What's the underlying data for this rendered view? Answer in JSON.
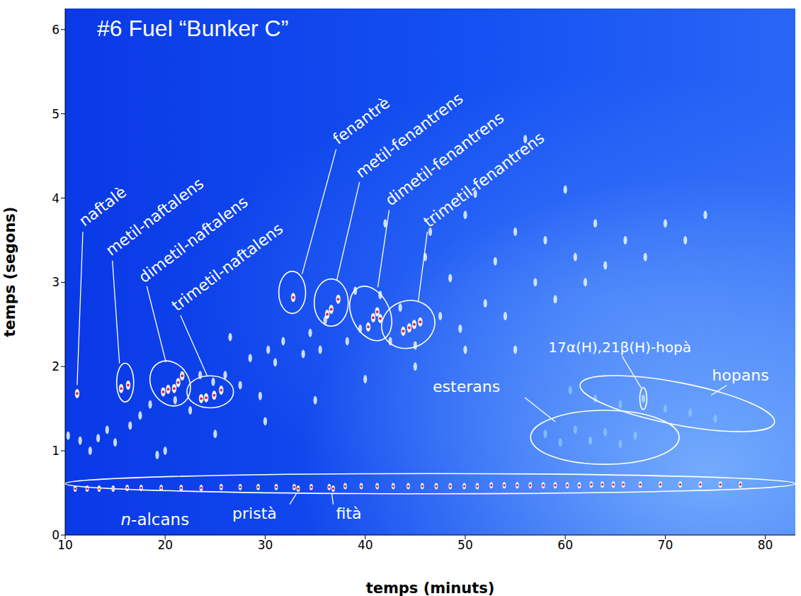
{
  "chart_data": {
    "type": "scatter",
    "title": "#6 Fuel “Bunker C”",
    "x_label": "temps (minuts)",
    "y_label": "temps (segons)",
    "xlim": [
      10,
      83
    ],
    "xticks": [
      10,
      20,
      30,
      40,
      50,
      60,
      70,
      80
    ],
    "ylim": [
      0,
      6.25
    ],
    "yticks": [
      0,
      1,
      2,
      3,
      4,
      5,
      6
    ],
    "grid": false,
    "series": [
      {
        "name": "n-alcans",
        "color": "#d0203c",
        "x": [
          11.0,
          12.2,
          13.4,
          14.8,
          16.2,
          17.6,
          19.6,
          21.6,
          23.6,
          25.6,
          27.5,
          29.3,
          31.1,
          32.9,
          34.6,
          36.4,
          38.0,
          39.6,
          41.2,
          42.8,
          44.3,
          45.7,
          47.1,
          48.5,
          49.9,
          51.2,
          52.6,
          53.9,
          55.2,
          56.5,
          57.8,
          59.0,
          60.2,
          61.4,
          62.6,
          63.7,
          64.8,
          65.8,
          67.5,
          69.5,
          71.5,
          73.5,
          75.5,
          77.5
        ],
        "y": [
          0.55,
          0.55,
          0.55,
          0.55,
          0.56,
          0.56,
          0.56,
          0.56,
          0.56,
          0.57,
          0.57,
          0.57,
          0.57,
          0.57,
          0.57,
          0.57,
          0.58,
          0.58,
          0.58,
          0.58,
          0.58,
          0.58,
          0.58,
          0.58,
          0.58,
          0.58,
          0.59,
          0.59,
          0.59,
          0.59,
          0.59,
          0.59,
          0.59,
          0.59,
          0.6,
          0.6,
          0.6,
          0.6,
          0.6,
          0.6,
          0.6,
          0.6,
          0.6,
          0.6
        ],
        "ellipse": {
          "x": 46.5,
          "y": 0.61,
          "rx": 36.5,
          "ry": 0.12
        }
      },
      {
        "name": "pristà",
        "color": "#d0203c",
        "x": [
          33.3
        ],
        "y": [
          0.55
        ]
      },
      {
        "name": "fità",
        "color": "#d0203c",
        "x": [
          36.8
        ],
        "y": [
          0.55
        ]
      },
      {
        "name": "naftalè",
        "color": "#e0283c",
        "x": [
          11.2
        ],
        "y": [
          1.68
        ]
      },
      {
        "name": "metil-naftalens",
        "color": "#e0283c",
        "x": [
          15.6,
          16.3
        ],
        "y": [
          1.74,
          1.78
        ],
        "ellipse": {
          "x": 16.0,
          "y": 1.81,
          "rx": 0.85,
          "ry": 0.23
        }
      },
      {
        "name": "dimetil-naftalens",
        "color": "#e0283c",
        "x": [
          19.8,
          20.3,
          20.9,
          21.3,
          21.7
        ],
        "y": [
          1.7,
          1.73,
          1.74,
          1.81,
          1.89
        ],
        "ellipse": {
          "x": 20.5,
          "y": 1.8,
          "rx": 1.9,
          "ry": 0.28
        }
      },
      {
        "name": "trimetil-naftalens",
        "color": "#e0283c",
        "x": [
          23.6,
          24.1,
          24.9,
          25.6
        ],
        "y": [
          1.62,
          1.63,
          1.66,
          1.72
        ],
        "ellipse": {
          "x": 24.5,
          "y": 1.7,
          "rx": 2.33,
          "ry": 0.19
        }
      },
      {
        "name": "fenantrè",
        "color": "#e0283c",
        "x": [
          32.8
        ],
        "y": [
          2.82
        ],
        "ellipse": {
          "x": 32.7,
          "y": 2.88,
          "rx": 1.34,
          "ry": 0.25
        }
      },
      {
        "name": "metil-fenantrens",
        "color": "#e0283c",
        "x": [
          36.2,
          36.6,
          37.3
        ],
        "y": [
          2.62,
          2.68,
          2.8
        ],
        "ellipse": {
          "x": 36.6,
          "y": 2.76,
          "rx": 1.7,
          "ry": 0.28
        }
      },
      {
        "name": "dimetil-fenantrens",
        "color": "#e0283c",
        "x": [
          40.3,
          40.8,
          41.2,
          41.5
        ],
        "y": [
          2.47,
          2.58,
          2.65,
          2.57
        ],
        "ellipse": {
          "x": 40.55,
          "y": 2.63,
          "rx": 1.9,
          "ry": 0.34
        }
      },
      {
        "name": "trimetil-fenantrens",
        "color": "#e0283c",
        "x": [
          43.8,
          44.4,
          44.9,
          45.5
        ],
        "y": [
          2.42,
          2.46,
          2.5,
          2.53
        ],
        "ellipse": {
          "x": 44.3,
          "y": 2.5,
          "rx": 2.7,
          "ry": 0.28
        }
      },
      {
        "name": "esterans",
        "color": "#8cc0ff",
        "x": [
          58,
          59.5,
          61,
          62.5,
          64,
          65.5,
          67
        ],
        "y": [
          1.2,
          1.1,
          1.25,
          1.12,
          1.22,
          1.08,
          1.18
        ],
        "ellipse": {
          "x": 63.96,
          "y": 1.16,
          "rx": 7.43,
          "ry": 0.32
        }
      },
      {
        "name": "hopans",
        "color": "#8cc0ff",
        "x": [
          60.5,
          63,
          65.5,
          70,
          72.5,
          75
        ],
        "y": [
          1.72,
          1.62,
          1.55,
          1.5,
          1.45,
          1.38
        ],
        "ellipse": {
          "x": 71.2,
          "y": 1.56,
          "rx": 9.9,
          "ry": 0.25
        }
      },
      {
        "name": "17α(H),21β(H)-hopà",
        "color": "#b8d8ff",
        "x": [
          67.8
        ],
        "y": [
          1.62
        ],
        "ellipse": {
          "x": 67.8,
          "y": 1.62,
          "rx": 0.35,
          "ry": 0.13
        }
      },
      {
        "color": "#eaf4ff",
        "x": [
          10.3,
          11.5,
          12.5,
          13.3,
          14.2,
          15,
          16.5,
          17.5,
          18.5,
          19.2,
          21,
          22.5,
          23.5,
          24.8,
          26,
          26.5,
          27.5,
          28.5,
          29.5,
          30.3,
          31,
          31.8,
          33.8,
          34.5,
          35.5,
          36,
          38.2,
          39,
          39.5,
          41.5,
          42,
          42.5,
          43.5,
          45,
          46,
          46.5,
          47.5,
          48.5,
          49.5,
          50,
          51,
          52,
          53,
          54,
          55,
          56,
          57,
          58,
          59,
          60,
          61,
          62,
          63,
          64,
          66,
          68,
          70,
          72,
          74,
          20,
          25,
          30,
          35,
          40,
          45,
          50,
          55
        ],
        "y": [
          1.18,
          1.12,
          1.0,
          1.15,
          1.25,
          1.1,
          1.3,
          1.42,
          1.55,
          0.95,
          1.6,
          1.48,
          1.9,
          1.82,
          1.9,
          2.35,
          1.78,
          2.1,
          1.65,
          2.2,
          2.05,
          2.3,
          2.15,
          2.4,
          2.2,
          2.55,
          2.3,
          2.9,
          2.45,
          2.85,
          3.7,
          2.3,
          2.7,
          2.25,
          3.3,
          3.6,
          2.6,
          3.05,
          2.45,
          3.8,
          4.05,
          2.75,
          3.25,
          2.6,
          3.6,
          4.7,
          3.0,
          3.5,
          2.8,
          4.1,
          3.3,
          3.0,
          3.7,
          3.2,
          3.5,
          3.3,
          3.7,
          3.5,
          3.8,
          1.0,
          1.2,
          1.35,
          1.6,
          1.85,
          2.0,
          2.2,
          2.2
        ]
      }
    ]
  }
}
